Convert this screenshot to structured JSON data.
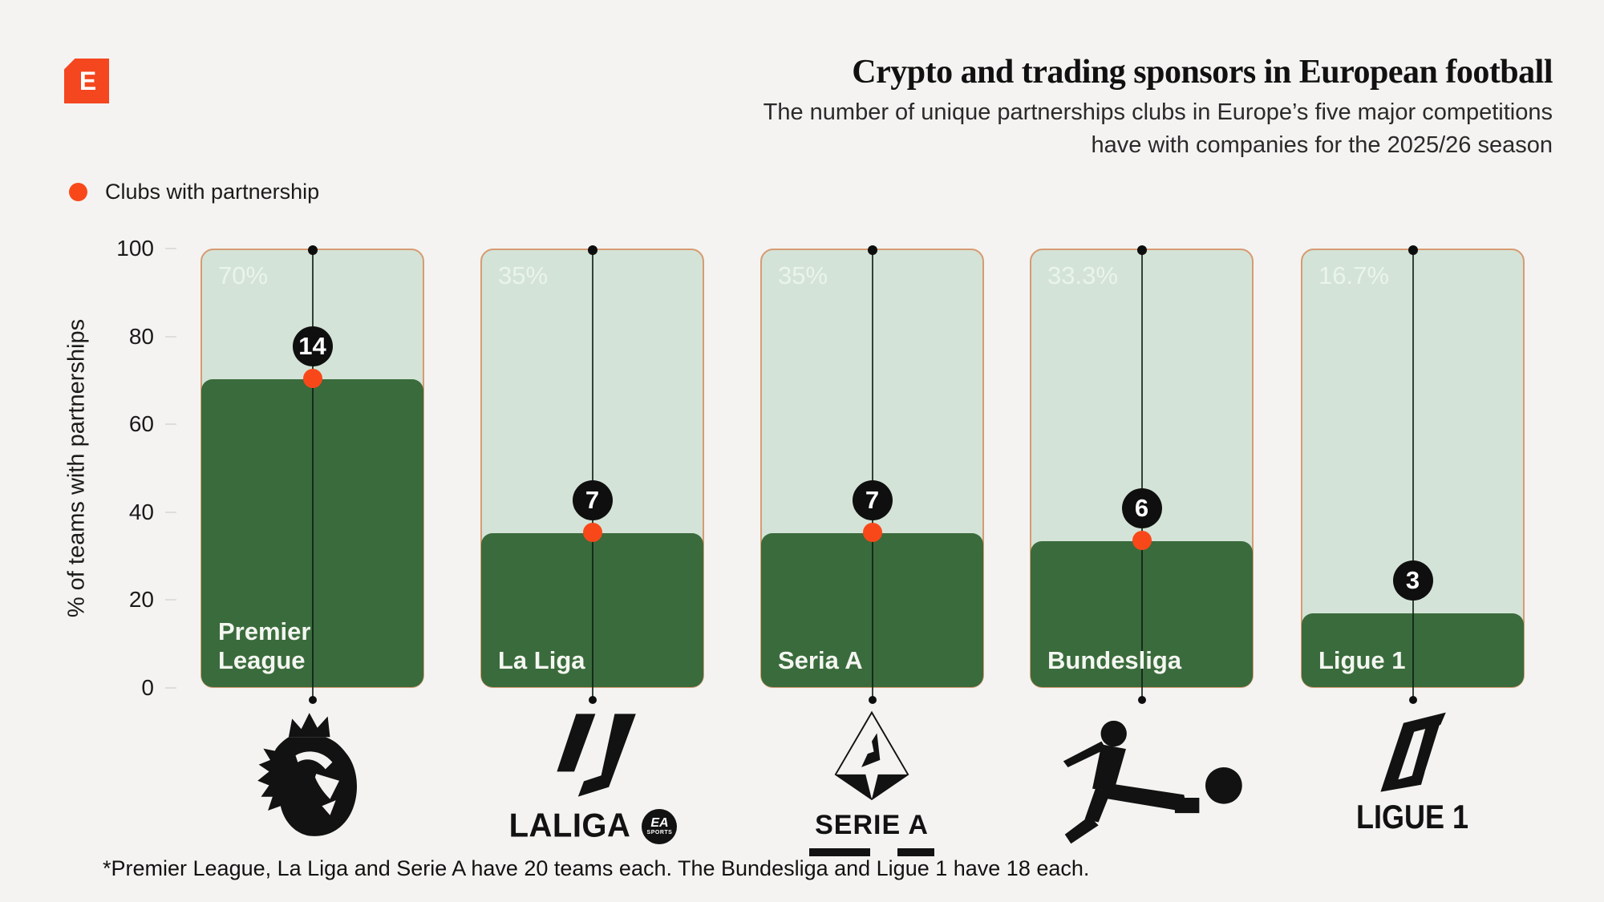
{
  "brand": {
    "logo_letter": "E"
  },
  "header": {
    "title": "Crypto and trading sponsors in European football",
    "subtitle_line1": "The number of unique partnerships clubs in Europe’s five major competitions",
    "subtitle_line2": "have with companies for the 2025/26 season"
  },
  "legend": {
    "label": "Clubs with partnership"
  },
  "y_axis": {
    "label": "% of teams with partnerships",
    "ticks": [
      "100",
      "80",
      "60",
      "40",
      "20",
      "0"
    ]
  },
  "bars": [
    {
      "league": "Premier League",
      "pct": 70,
      "pct_label": "70%",
      "count": "14",
      "show_dot": true
    },
    {
      "league": "La Liga",
      "pct": 35,
      "pct_label": "35%",
      "count": "7",
      "show_dot": true
    },
    {
      "league": "Seria A",
      "pct": 35,
      "pct_label": "35%",
      "count": "7",
      "show_dot": true
    },
    {
      "league": "Bundesliga",
      "pct": 33.3,
      "pct_label": "33.3%",
      "count": "6",
      "show_dot": true
    },
    {
      "league": "Ligue 1",
      "pct": 16.7,
      "pct_label": "16.7%",
      "count": "3",
      "show_dot": false
    }
  ],
  "logos": {
    "laliga_word": "LALIGA",
    "ea_sports_line1": "EA",
    "ea_sports_line2": "SPORTS",
    "serie_a_word": "SERIE A",
    "ligue_1_word": "LIGUE 1"
  },
  "footnote": "*Premier League, La Liga and Serie A have 20 teams each. The Bundesliga and Ligue 1 have 18 each.",
  "colors": {
    "background": "#f4f3f1",
    "bar_fill_green": "#3a6b3c",
    "bar_track_green": "#d4e3d7",
    "track_border_tan": "#d69b72",
    "accent_orange": "#f8481a",
    "badge_black": "#0f0f0f",
    "brand_orange": "#f4461f"
  },
  "chart_data": {
    "type": "bar",
    "title": "Crypto and trading sponsors in European football",
    "subtitle": "The number of unique partnerships clubs in Europe’s five major competitions have with companies for the 2025/26 season",
    "categories": [
      "Premier League",
      "La Liga",
      "Seria A",
      "Bundesliga",
      "Ligue 1"
    ],
    "series": [
      {
        "name": "% of teams with partnerships",
        "values": [
          70,
          35,
          35,
          33.3,
          16.7
        ],
        "unit": "%"
      },
      {
        "name": "Clubs with partnership",
        "values": [
          14,
          7,
          7,
          6,
          3
        ],
        "unit": "clubs"
      }
    ],
    "xlabel": "",
    "ylabel": "% of teams with partnerships",
    "ylim": [
      0,
      100
    ],
    "yticks": [
      0,
      20,
      40,
      60,
      80,
      100
    ],
    "grid": false,
    "legend_position": "top-left",
    "legend_entries": [
      "Clubs with partnership"
    ],
    "footnote": "*Premier League, La Liga and Serie A have 20 teams each. The Bundesliga and Ligue 1 have 18 each."
  }
}
